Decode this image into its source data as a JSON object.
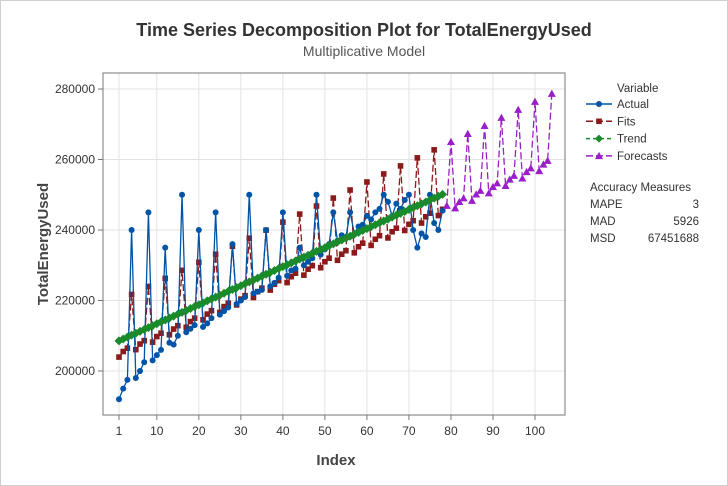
{
  "chart_data": {
    "type": "line",
    "title": "Time Series Decomposition Plot for TotalEnergyUsed",
    "subtitle": "Multiplicative Model",
    "xlabel": "Index",
    "ylabel": "TotalEnergyUsed",
    "xlim": [
      1,
      104
    ],
    "ylim": [
      188000,
      285000
    ],
    "xticks": [
      1,
      10,
      20,
      30,
      40,
      50,
      60,
      70,
      80,
      90,
      100
    ],
    "yticks": [
      200000,
      220000,
      240000,
      260000,
      280000
    ],
    "ytick_labels": [
      "200000",
      "220000",
      "240000",
      "260000",
      "280000"
    ],
    "grid": true,
    "legend_placement": "right",
    "legend_title": "Variable",
    "series": [
      {
        "name": "Actual",
        "color": "#0054a6",
        "marker": "circle",
        "dash": "solid",
        "x_start": 1,
        "values": [
          192000,
          195000,
          197500,
          240000,
          198000,
          200000,
          202500,
          245000,
          203000,
          204500,
          206000,
          235000,
          208000,
          207500,
          210000,
          250000,
          211000,
          212000,
          213000,
          240000,
          212500,
          213500,
          215000,
          245000,
          216000,
          217000,
          218000,
          236000,
          219000,
          220000,
          221000,
          250000,
          222000,
          222500,
          223000,
          240000,
          224000,
          225000,
          226500,
          245000,
          227000,
          228500,
          229000,
          235000,
          230000,
          231000,
          232000,
          250000,
          233000,
          234500,
          236000,
          245000,
          237000,
          238500,
          238000,
          245000,
          239000,
          241000,
          241500,
          244000,
          243000,
          245000,
          246000,
          250000,
          248000,
          244000,
          247500,
          246000,
          248500,
          250000,
          240000,
          235000,
          239000,
          238000,
          250000,
          242000,
          240000,
          245500
        ]
      },
      {
        "name": "Fits",
        "color": "#8b1a1a",
        "marker": "square",
        "dash": "long",
        "x_start": 1,
        "values": [
          203950,
          205530,
          206480,
          221720,
          206060,
          207650,
          208600,
          224000,
          208180,
          209770,
          210730,
          226280,
          210290,
          211900,
          212860,
          228560,
          212400,
          214020,
          214990,
          230830,
          214510,
          216140,
          217110,
          233110,
          216630,
          218270,
          219240,
          235390,
          218740,
          220390,
          221370,
          237670,
          220850,
          222510,
          223500,
          239950,
          222960,
          224640,
          225620,
          242230,
          225080,
          226760,
          227750,
          244510,
          227190,
          228880,
          229880,
          246790,
          229300,
          231000,
          232010,
          249060,
          231410,
          233130,
          234130,
          251340,
          233530,
          235250,
          236260,
          253620,
          235640,
          237370,
          238390,
          255900,
          237750,
          239500,
          240520,
          258180,
          239860,
          241620,
          242640,
          260460,
          241980,
          243740,
          244770,
          262740,
          244090,
          245870
        ]
      },
      {
        "name": "Trend",
        "color": "#1a8a2a",
        "marker": "diamond",
        "dash": "short",
        "x_start": 1,
        "values": [
          208540,
          209080,
          209620,
          210160,
          210700,
          211240,
          211780,
          212320,
          212860,
          213400,
          213940,
          214480,
          215020,
          215560,
          216100,
          216640,
          217180,
          217720,
          218260,
          218800,
          219340,
          219880,
          220420,
          220960,
          221500,
          222040,
          222580,
          223120,
          223660,
          224200,
          224740,
          225280,
          225820,
          226360,
          226900,
          227440,
          227980,
          228520,
          229060,
          229600,
          230140,
          230680,
          231220,
          231760,
          232300,
          232840,
          233380,
          233920,
          234460,
          235000,
          235540,
          236080,
          236620,
          237160,
          237700,
          238240,
          238780,
          239320,
          239860,
          240400,
          240940,
          241480,
          242020,
          242560,
          243100,
          243640,
          244180,
          244720,
          245260,
          245800,
          246340,
          246880,
          247420,
          247960,
          248500,
          249040,
          249580,
          250120
        ]
      },
      {
        "name": "Forecasts",
        "color": "#9b1fc8",
        "marker": "triangle",
        "dash": "long",
        "x_start": 79,
        "values": [
          246900,
          265020,
          246200,
          247990,
          249030,
          267290,
          248310,
          250110,
          251160,
          269570,
          250430,
          252240,
          253280,
          271850,
          252540,
          254360,
          255410,
          274130,
          254650,
          256480,
          257540,
          276410,
          256760,
          258610,
          259670,
          278690
        ]
      }
    ]
  },
  "accuracy": {
    "title": "Accuracy Measures",
    "rows": [
      {
        "label": "MAPE",
        "value": "3"
      },
      {
        "label": "MAD",
        "value": "5926"
      },
      {
        "label": "MSD",
        "value": "67451688"
      }
    ]
  }
}
